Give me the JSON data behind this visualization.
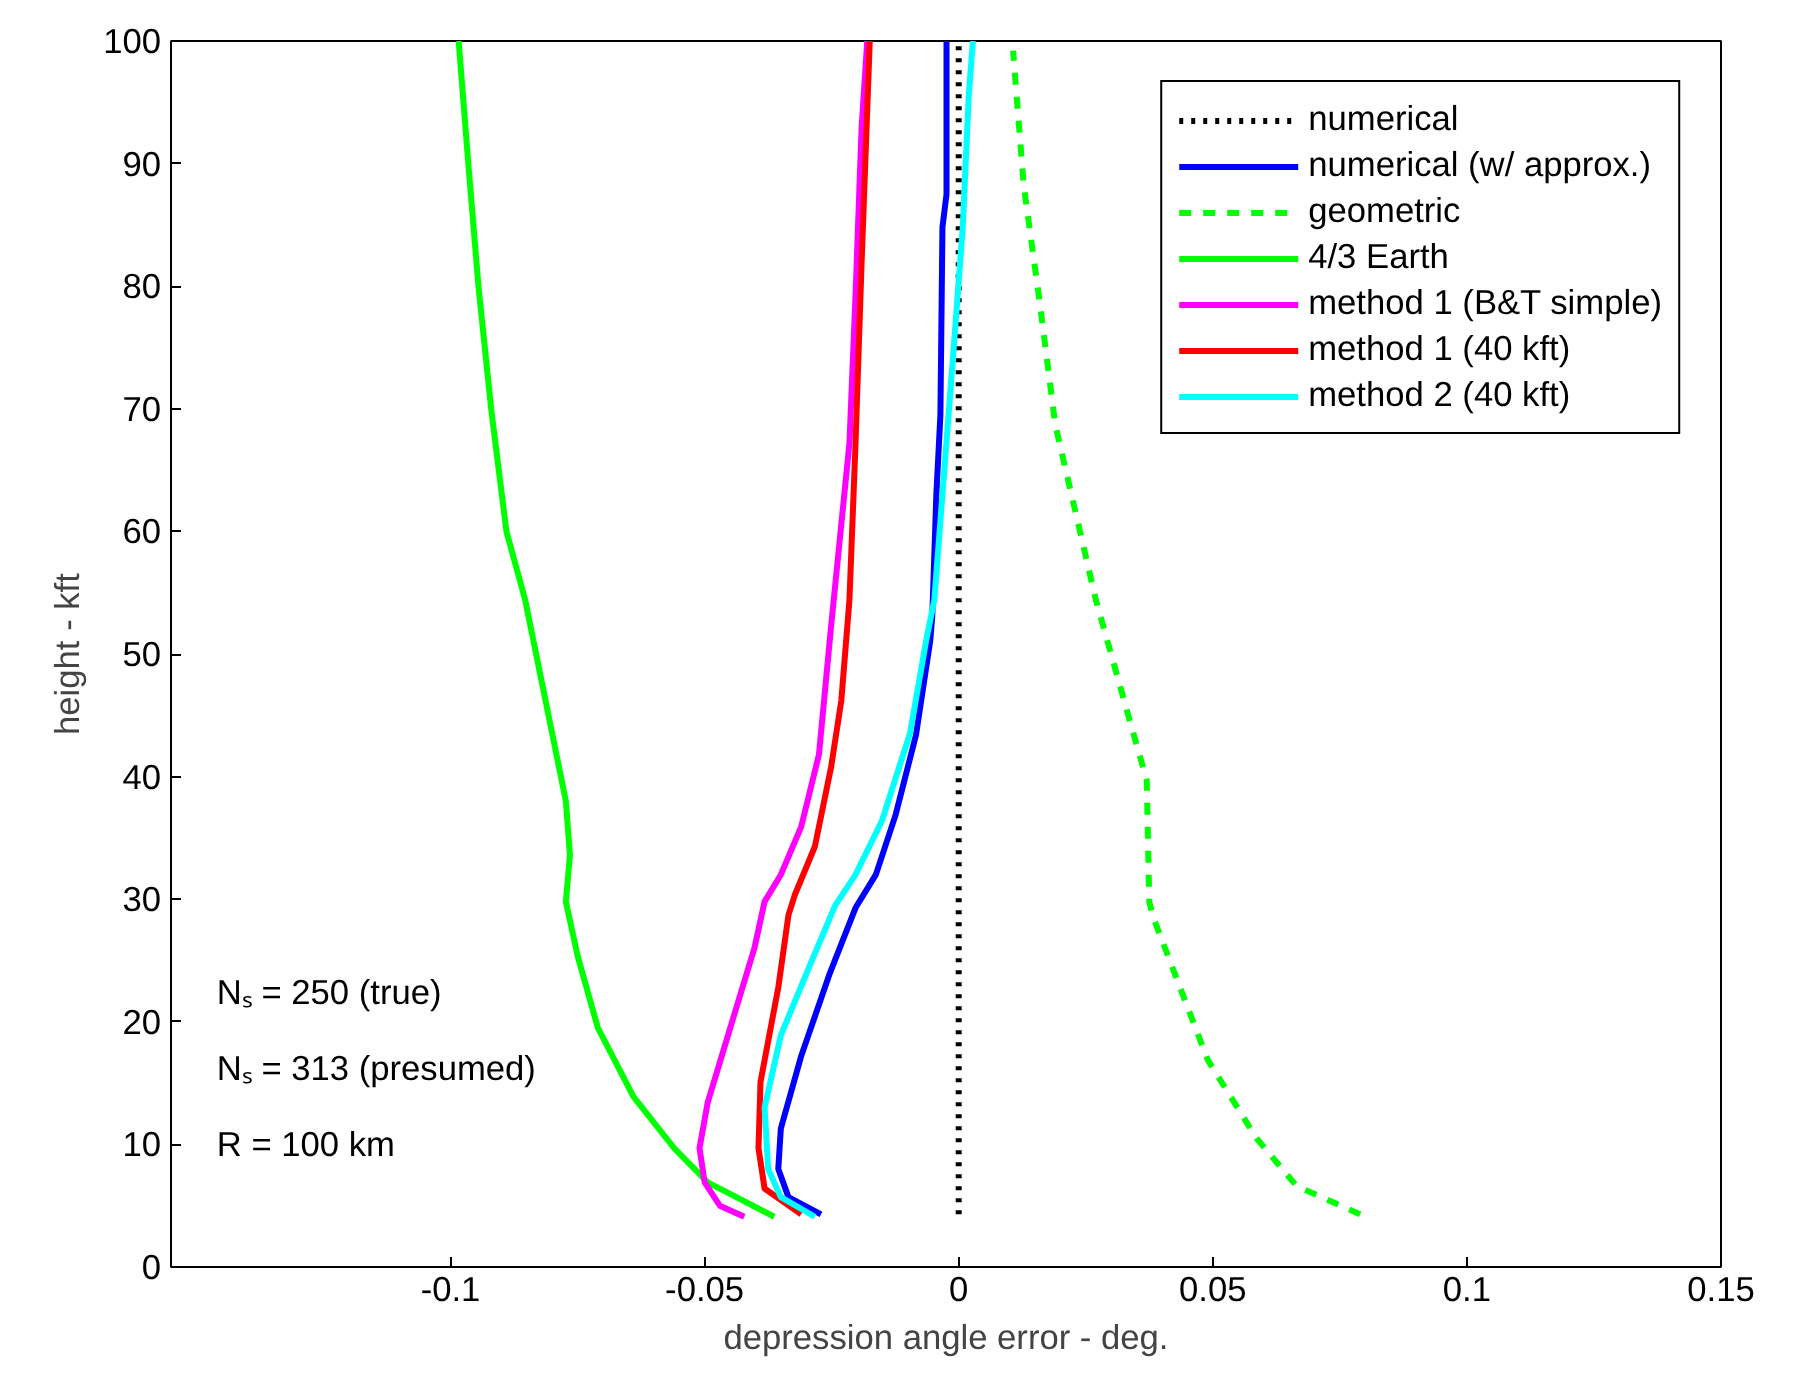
{
  "chart_data": {
    "type": "line",
    "xlabel": "depression angle error - deg.",
    "ylabel": "height - kft",
    "xlim": [
      -0.155,
      0.15
    ],
    "xticks": [
      -0.1,
      -0.05,
      0,
      0.05,
      0.1,
      0.15
    ],
    "ylim": [
      0,
      100
    ],
    "yticks": [
      0,
      10,
      20,
      30,
      40,
      50,
      60,
      70,
      80,
      90,
      100
    ],
    "grid": false,
    "legend": "top right",
    "marker": "none",
    "annotations": [
      "Nₛ = 250 (true)",
      "Nₛ = 313 (presumed)",
      "R = 100 km"
    ],
    "series": [
      {
        "name": "numerical",
        "color": "#000000",
        "line_style": "dotted",
        "x": [
          0,
          0,
          0,
          0,
          0,
          0,
          0,
          0,
          0,
          0,
          0
        ],
        "values": [
          4.3,
          10,
          20,
          30,
          40,
          50,
          60,
          70,
          80,
          90,
          100
        ]
      },
      {
        "name": "numerical (w/ approx.)",
        "color": "#0000ff",
        "line_style": "solid",
        "x": [
          -0.0271,
          -0.0335,
          -0.0355,
          -0.035,
          -0.031,
          -0.0255,
          -0.0203,
          -0.0163,
          -0.0124,
          -0.0084,
          -0.0056,
          -0.0052,
          -0.0044,
          -0.0036,
          -0.0032,
          -0.0024,
          -0.0024
        ],
        "values": [
          4.3,
          5.7,
          8,
          11.3,
          17.2,
          23.8,
          29.3,
          32,
          36.9,
          43.4,
          51.1,
          53.1,
          63,
          69.5,
          84.8,
          87.5,
          100
        ]
      },
      {
        "name": "geometric",
        "color": "#00ff00",
        "line_style": "dashed",
        "x": [
          0.079,
          0.0665,
          0.0586,
          0.049,
          0.043,
          0.0383,
          0.0375,
          0.037,
          0.0335,
          0.027,
          0.019,
          0.016,
          0.0128,
          0.0107
        ],
        "values": [
          4.3,
          6.6,
          10.5,
          16.9,
          23.4,
          28.5,
          29.8,
          39.7,
          44.8,
          54.4,
          68.7,
          78.5,
          88.2,
          99.2
        ]
      },
      {
        "name": "4/3 Earth",
        "color": "#00ff00",
        "line_style": "solid",
        "x": [
          -0.0363,
          -0.0494,
          -0.056,
          -0.064,
          -0.071,
          -0.075,
          -0.0773,
          -0.0765,
          -0.0773,
          -0.0813,
          -0.0853,
          -0.089,
          -0.092,
          -0.0945,
          -0.0965,
          -0.0984
        ],
        "values": [
          4.1,
          6.9,
          9.7,
          13.9,
          19.5,
          25.4,
          29.8,
          33.6,
          38,
          46.2,
          54.4,
          60,
          70,
          80,
          90,
          100
        ]
      },
      {
        "name": "method 1 (B&T simple)",
        "color": "#ff00ff",
        "line_style": "solid",
        "x": [
          -0.0422,
          -0.047,
          -0.05,
          -0.051,
          -0.0494,
          -0.0454,
          -0.0402,
          -0.0382,
          -0.035,
          -0.031,
          -0.0275,
          -0.0251,
          -0.0215,
          -0.0203,
          -0.0191,
          -0.018
        ],
        "values": [
          4.1,
          5,
          6.9,
          9.7,
          13.4,
          18.9,
          26,
          29.8,
          32,
          35.9,
          41.8,
          52.3,
          67.2,
          79.3,
          93,
          100
        ]
      },
      {
        "name": "method 1 (40 kft)",
        "color": "#ff0000",
        "line_style": "solid",
        "x": [
          -0.031,
          -0.0382,
          -0.0394,
          -0.039,
          -0.0355,
          -0.0335,
          -0.0323,
          -0.0283,
          -0.0251,
          -0.0231,
          -0.0215,
          -0.0203,
          -0.0191,
          -0.0175
        ],
        "values": [
          4.3,
          6.4,
          9.7,
          15.1,
          22.8,
          28.7,
          30.3,
          34.3,
          40.8,
          46.2,
          54.4,
          67.2,
          82,
          100
        ]
      },
      {
        "name": "method 2 (40 kft)",
        "color": "#00ffff",
        "line_style": "solid",
        "x": [
          -0.0283,
          -0.035,
          -0.0375,
          -0.0382,
          -0.035,
          -0.0295,
          -0.0243,
          -0.0203,
          -0.0151,
          -0.0096,
          -0.0064,
          -0.0048,
          -0.0032,
          -0.0012,
          0.0008,
          0.002,
          0.0028
        ],
        "values": [
          4.1,
          5.7,
          8,
          13,
          18.9,
          24.4,
          29.5,
          32,
          36.4,
          43.5,
          51.1,
          54.4,
          63,
          73.8,
          84.8,
          95.7,
          100
        ]
      }
    ]
  }
}
